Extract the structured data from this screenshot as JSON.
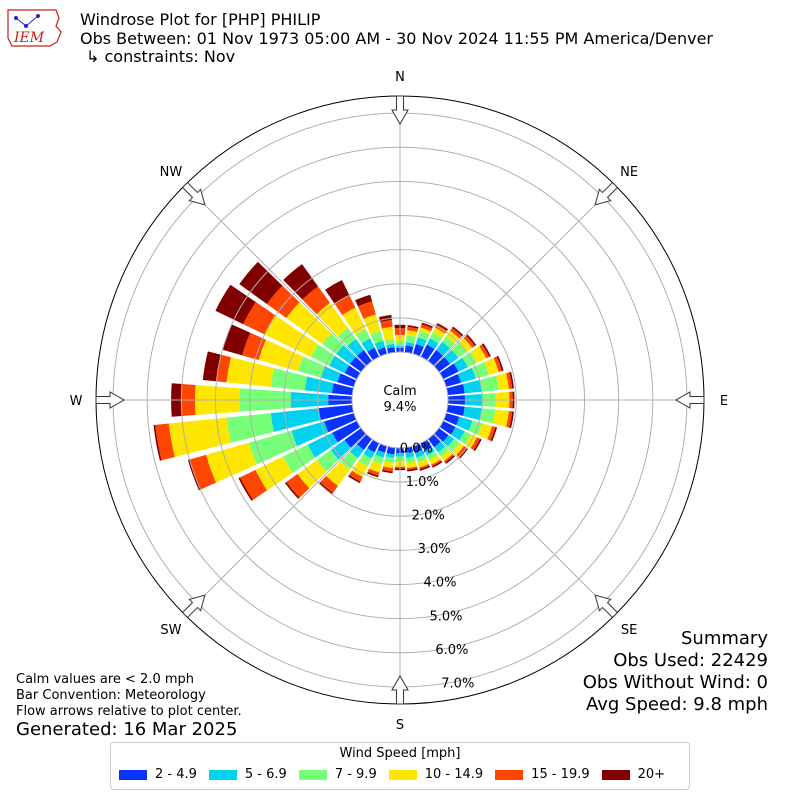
{
  "header": {
    "title": "Windrose Plot for [PHP] PHILIP",
    "subtitle": "Obs Between: 01 Nov 1973 05:00 AM - 30 Nov 2024 11:55 PM America/Denver",
    "constraints": "↳ constraints: Nov"
  },
  "logo": {
    "text": "IEM"
  },
  "summary": {
    "title": "Summary",
    "obs_used": "Obs Used: 22429",
    "obs_without_wind": "Obs Without Wind: 0",
    "avg_speed": "Avg Speed: 9.8 mph"
  },
  "notes": {
    "calm_def": "Calm values are < 2.0 mph",
    "bar_convention": "Bar Convention: Meteorology",
    "flow_arrows": "Flow arrows relative to plot center."
  },
  "generated": "Generated: 16 Mar 2025",
  "chart_data": {
    "type": "windrose",
    "calm_label": "Calm",
    "calm_value": "9.4%",
    "radial_ticks": [
      "0.0%",
      "1.0%",
      "2.0%",
      "3.0%",
      "4.0%",
      "5.0%",
      "6.0%",
      "7.0%"
    ],
    "radial_range": [
      0,
      7.5
    ],
    "compass_labels": [
      "N",
      "NE",
      "E",
      "SE",
      "S",
      "SW",
      "W",
      "NW"
    ],
    "legend_title": "Wind Speed [mph]",
    "bins": [
      {
        "label": "2 - 4.9",
        "color": "#0a32ff"
      },
      {
        "label": "5 - 6.9",
        "color": "#00d2f0"
      },
      {
        "label": "7 - 9.9",
        "color": "#78ff78"
      },
      {
        "label": "10 - 14.9",
        "color": "#ffe600"
      },
      {
        "label": "15 - 19.9",
        "color": "#ff4600"
      },
      {
        "label": "20+",
        "color": "#800000"
      }
    ],
    "directions": [
      0,
      10,
      20,
      30,
      40,
      50,
      60,
      70,
      80,
      90,
      100,
      110,
      120,
      130,
      140,
      150,
      160,
      170,
      180,
      190,
      200,
      210,
      220,
      230,
      240,
      250,
      260,
      270,
      280,
      290,
      300,
      310,
      320,
      330,
      340,
      350
    ],
    "cumulative_percent": [
      [
        0.12,
        0.18,
        0.3,
        0.5,
        0.7,
        0.8
      ],
      [
        0.2,
        0.3,
        0.5,
        0.65,
        0.75,
        0.8
      ],
      [
        0.3,
        0.5,
        0.7,
        0.8,
        0.9,
        0.95
      ],
      [
        0.4,
        0.6,
        0.8,
        0.95,
        1.05,
        1.1
      ],
      [
        0.4,
        0.7,
        0.9,
        1.1,
        1.2,
        1.25
      ],
      [
        0.4,
        0.7,
        1.0,
        1.2,
        1.3,
        1.35
      ],
      [
        0.5,
        0.8,
        1.1,
        1.4,
        1.5,
        1.55
      ],
      [
        0.45,
        0.9,
        1.3,
        1.6,
        1.7,
        1.75
      ],
      [
        0.5,
        1.0,
        1.5,
        1.8,
        1.9,
        1.95
      ],
      [
        0.5,
        1.0,
        1.4,
        1.8,
        1.9,
        1.95
      ],
      [
        0.5,
        1.0,
        1.4,
        1.8,
        1.9,
        1.95
      ],
      [
        0.4,
        0.8,
        1.1,
        1.4,
        1.5,
        1.55
      ],
      [
        0.4,
        0.7,
        0.9,
        1.1,
        1.2,
        1.25
      ],
      [
        0.35,
        0.55,
        0.75,
        0.9,
        1.0,
        1.05
      ],
      [
        0.3,
        0.5,
        0.65,
        0.8,
        0.85,
        0.9
      ],
      [
        0.25,
        0.4,
        0.55,
        0.7,
        0.75,
        0.8
      ],
      [
        0.2,
        0.35,
        0.5,
        0.65,
        0.7,
        0.75
      ],
      [
        0.15,
        0.3,
        0.45,
        0.6,
        0.65,
        0.7
      ],
      [
        0.15,
        0.25,
        0.4,
        0.55,
        0.6,
        0.65
      ],
      [
        0.2,
        0.3,
        0.45,
        0.6,
        0.7,
        0.75
      ],
      [
        0.2,
        0.35,
        0.55,
        0.8,
        0.9,
        0.95
      ],
      [
        0.3,
        0.5,
        0.75,
        1.1,
        1.25,
        1.3
      ],
      [
        0.4,
        0.7,
        1.1,
        1.7,
        1.95,
        2.0
      ],
      [
        0.6,
        1.1,
        1.6,
        2.3,
        2.7,
        2.75
      ],
      [
        0.8,
        1.6,
        2.4,
        3.3,
        3.8,
        3.85
      ],
      [
        0.9,
        1.9,
        3.2,
        4.5,
        5.0,
        5.05
      ],
      [
        1.0,
        2.4,
        3.7,
        5.4,
        5.8,
        5.85
      ],
      [
        0.7,
        1.8,
        3.3,
        4.6,
        5.0,
        5.3
      ],
      [
        0.6,
        1.4,
        2.4,
        3.7,
        4.0,
        4.4
      ],
      [
        0.5,
        1.0,
        1.7,
        2.9,
        3.4,
        4.0
      ],
      [
        0.4,
        0.9,
        1.5,
        3.0,
        3.7,
        4.6
      ],
      [
        0.4,
        0.9,
        1.4,
        2.7,
        3.4,
        4.4
      ],
      [
        0.4,
        0.8,
        1.2,
        2.1,
        2.7,
        3.5
      ],
      [
        0.3,
        0.6,
        0.9,
        1.6,
        2.0,
        2.5
      ],
      [
        0.2,
        0.4,
        0.7,
        1.2,
        1.6,
        1.8
      ],
      [
        0.15,
        0.25,
        0.4,
        0.75,
        0.95,
        1.1
      ]
    ]
  }
}
